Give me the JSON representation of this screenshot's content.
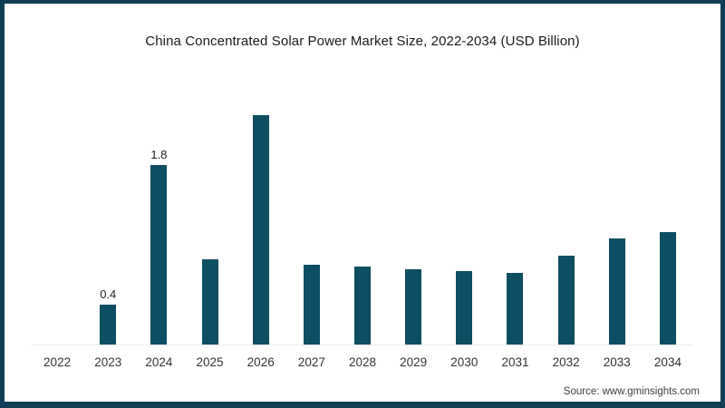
{
  "page": {
    "border_color": "#123d56",
    "background": "#ffffff"
  },
  "header": {
    "title": "China Concentrated Solar Power Market Size, 2022-2034 (USD Billion)"
  },
  "footer": {
    "source": "Source: www.gminsights.com"
  },
  "chart_data": {
    "type": "bar",
    "title": "China Concentrated Solar Power Market Size, 2022-2034 (USD Billion)",
    "categories": [
      "2022",
      "2023",
      "2024",
      "2025",
      "2026",
      "2027",
      "2028",
      "2029",
      "2030",
      "2031",
      "2032",
      "2033",
      "2034"
    ],
    "values": [
      0,
      0.4,
      1.8,
      0.86,
      2.3,
      0.8,
      0.78,
      0.76,
      0.74,
      0.72,
      0.89,
      1.07,
      1.13
    ],
    "data_labels": {
      "2023": "0.4",
      "2024": "1.8"
    },
    "xlabel": "",
    "ylabel": "",
    "ylim": [
      0,
      2.55
    ],
    "grid": false,
    "legend": false,
    "bar_color": "#0d4e62",
    "axis_line_color": "#eaeaea",
    "label_color": "#222222",
    "tick_color": "#333333"
  }
}
